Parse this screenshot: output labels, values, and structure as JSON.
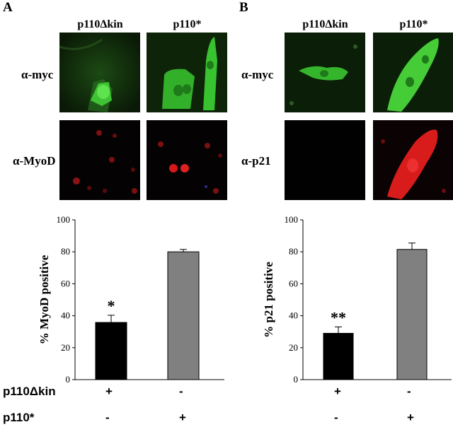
{
  "panels": [
    {
      "letter": "A",
      "columns": [
        "p110Δkin",
        "p110*"
      ],
      "rows": [
        "α-myc",
        "α-MyoD"
      ],
      "chart_data": {
        "type": "bar",
        "categories": [
          "p110Δkin",
          "p110*"
        ],
        "values": [
          35.8,
          80.0
        ],
        "errors": [
          4.5,
          1.5
        ],
        "bar_colors": [
          "#000000",
          "#808080"
        ],
        "significance": [
          "*",
          ""
        ],
        "ylabel": "% MyoD positive",
        "ylim": [
          0,
          100
        ],
        "yticks": [
          "0",
          "20",
          "40",
          "60",
          "80",
          "100"
        ]
      }
    },
    {
      "letter": "B",
      "columns": [
        "p110Δkin",
        "p110*"
      ],
      "rows": [
        "α-myc",
        "α-p21"
      ],
      "chart_data": {
        "type": "bar",
        "categories": [
          "p110Δkin",
          "p110*"
        ],
        "values": [
          29.0,
          81.5
        ],
        "errors": [
          4.0,
          4.0
        ],
        "bar_colors": [
          "#000000",
          "#808080"
        ],
        "significance": [
          "**",
          ""
        ],
        "ylabel": "% p21 positive",
        "ylim": [
          0,
          100
        ],
        "yticks": [
          "0",
          "20",
          "40",
          "60",
          "80",
          "100"
        ]
      }
    }
  ],
  "conditions": [
    {
      "label": "p110Δkin",
      "signs": [
        "+",
        "-",
        "+",
        "-"
      ]
    },
    {
      "label": "p110*",
      "signs": [
        "-",
        "+",
        "-",
        "+"
      ]
    }
  ],
  "colors": {
    "myc_stain": "#2ecc40",
    "myod_stain": "#d11",
    "p21_stain": "#e01818",
    "background": "#000000"
  }
}
